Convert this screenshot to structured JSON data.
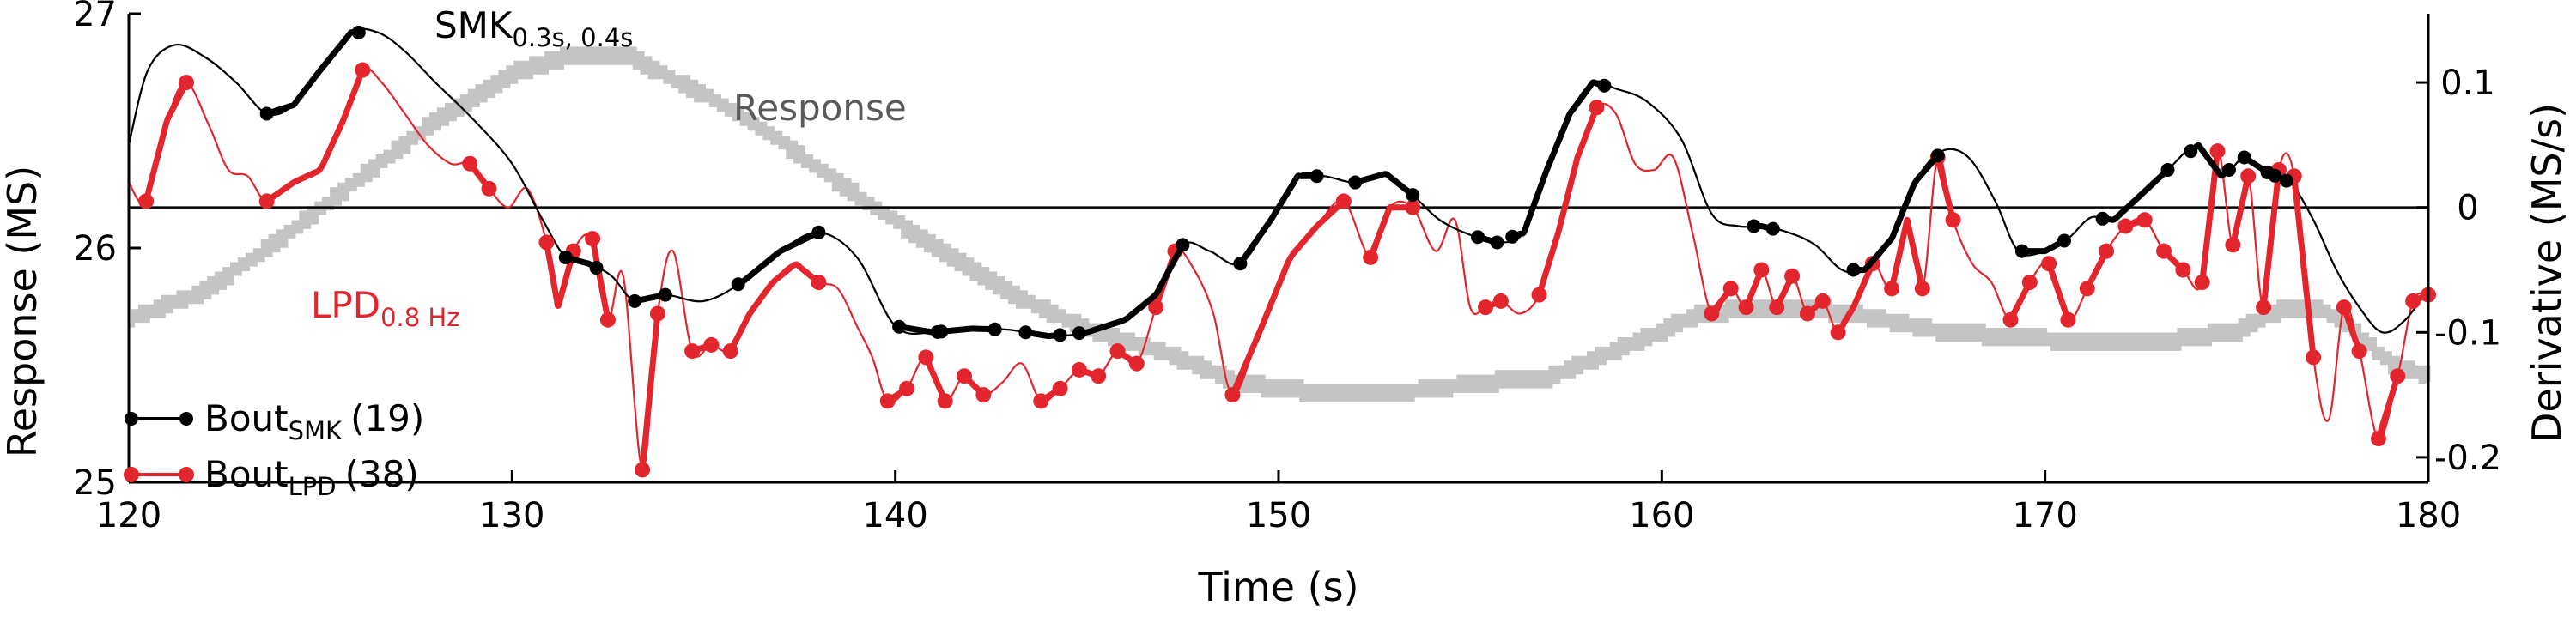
{
  "chart_data": {
    "type": "line",
    "xlabel": "Time (s)",
    "ylabel_left": "Response (MS)",
    "ylabel_right": "Derivative (MS/s)",
    "xlim": [
      120,
      180
    ],
    "ylim_left": [
      25,
      27
    ],
    "ylim_right": [
      -0.22,
      0.155
    ],
    "x_ticks": [
      120,
      130,
      140,
      150,
      160,
      170,
      180
    ],
    "y_ticks_left": [
      25,
      26,
      27
    ],
    "y_ticks_right": [
      -0.2,
      -0.1,
      0,
      0.1
    ],
    "y_tick_labels_right": [
      "-0.2",
      "-0.1",
      "0",
      "0.1"
    ],
    "zero_line": 0,
    "colors": {
      "response": "#c4c4c4",
      "smk": "#000000",
      "lpd": "#e3262d"
    },
    "annotations": {
      "smk": {
        "text": "SMK",
        "sub": "0.3s, 0.4s"
      },
      "response": {
        "text": "Response"
      },
      "lpd": {
        "text": "LPD",
        "sub": "0.8 Hz"
      }
    },
    "legend": [
      {
        "label": "Bout",
        "sub": "SMK",
        "count": "(19)",
        "color": "#000000"
      },
      {
        "label": "Bout",
        "sub": "LPD",
        "count": "(38)",
        "color": "#e3262d"
      }
    ],
    "series": [
      {
        "name": "Response",
        "axis": "left",
        "color": "#c4c4c4",
        "x": [
          120,
          122,
          124,
          126,
          128,
          130,
          131.5,
          133,
          135,
          137,
          139,
          141,
          143,
          145,
          147,
          149,
          151,
          153,
          155,
          157,
          159,
          161,
          163,
          165,
          167,
          169,
          171,
          173,
          175,
          176,
          177,
          178,
          179,
          180
        ],
        "y": [
          25.7,
          25.82,
          26.05,
          26.3,
          26.55,
          26.75,
          26.82,
          26.82,
          26.65,
          26.45,
          26.22,
          26.0,
          25.8,
          25.65,
          25.55,
          25.42,
          25.38,
          25.38,
          25.42,
          25.45,
          25.58,
          25.72,
          25.75,
          25.72,
          25.65,
          25.62,
          25.6,
          25.6,
          25.65,
          25.73,
          25.75,
          25.65,
          25.5,
          25.45
        ]
      },
      {
        "name": "SMK",
        "axis": "right",
        "color": "#000000",
        "x": [
          120,
          120.5,
          121.2,
          122,
          122.8,
          123.6,
          124.3,
          125,
          125.8,
          126.5,
          127.2,
          128,
          129,
          130,
          130.8,
          131.4,
          132,
          132.6,
          133.2,
          134,
          135,
          136,
          137,
          138,
          139,
          140,
          141,
          142,
          143,
          144,
          145,
          146,
          146.8,
          147.5,
          148.2,
          149,
          149.8,
          150.5,
          151.2,
          152,
          152.8,
          153.5,
          154.2,
          155,
          155.7,
          156.4,
          157,
          157.6,
          158.2,
          158.8,
          159.6,
          160.5,
          161.3,
          162,
          162.6,
          163.3,
          164,
          164.7,
          165.3,
          166,
          166.6,
          167.3,
          168,
          168.7,
          169.3,
          170,
          170.6,
          171.2,
          171.8,
          172.5,
          173.2,
          174,
          174.6,
          175.2,
          175.8,
          176.4,
          177,
          177.6,
          178.2,
          178.8,
          179.4,
          180
        ],
        "y": [
          0.05,
          0.11,
          0.13,
          0.12,
          0.1,
          0.075,
          0.082,
          0.11,
          0.14,
          0.14,
          0.125,
          0.1,
          0.07,
          0.035,
          -0.01,
          -0.04,
          -0.045,
          -0.055,
          -0.075,
          -0.07,
          -0.075,
          -0.06,
          -0.035,
          -0.02,
          -0.04,
          -0.095,
          -0.1,
          -0.097,
          -0.098,
          -0.103,
          -0.1,
          -0.09,
          -0.07,
          -0.03,
          -0.035,
          -0.045,
          -0.01,
          0.025,
          0.025,
          0.02,
          0.027,
          0.01,
          -0.01,
          -0.022,
          -0.028,
          -0.02,
          0.03,
          0.075,
          0.1,
          0.095,
          0.085,
          0.055,
          -0.005,
          -0.015,
          -0.015,
          -0.02,
          -0.03,
          -0.05,
          -0.05,
          -0.025,
          0.02,
          0.045,
          0.04,
          0.005,
          -0.035,
          -0.035,
          -0.025,
          -0.008,
          -0.01,
          0.01,
          0.03,
          0.05,
          0.025,
          0.04,
          0.028,
          0.02,
          -0.01,
          -0.05,
          -0.08,
          -0.1,
          -0.09,
          -0.065
        ]
      },
      {
        "name": "LPD",
        "axis": "right",
        "color": "#e3262d",
        "x": [
          120,
          120.45,
          121,
          121.5,
          122.1,
          122.6,
          123.1,
          123.6,
          124.3,
          125,
          125.6,
          126.1,
          126.6,
          127.2,
          127.8,
          128.4,
          128.9,
          129.4,
          129.9,
          130.4,
          130.9,
          131.2,
          131.6,
          132.1,
          132.5,
          132.9,
          133.4,
          133.8,
          134.2,
          134.7,
          135.2,
          135.7,
          136.2,
          136.8,
          137.4,
          138,
          138.5,
          139,
          139.4,
          139.8,
          140.3,
          140.8,
          141.3,
          141.8,
          142.3,
          142.8,
          143.3,
          143.8,
          144.3,
          144.8,
          145.3,
          145.8,
          146.3,
          146.8,
          147.3,
          147.8,
          148.3,
          148.8,
          149.5,
          150.3,
          151,
          151.7,
          152.4,
          152.9,
          153.5,
          154.1,
          154.6,
          155,
          155.4,
          155.8,
          156.3,
          156.8,
          157.3,
          157.8,
          158.3,
          158.8,
          159.3,
          159.8,
          160.3,
          160.8,
          161.3,
          161.8,
          162.2,
          162.6,
          163,
          163.4,
          163.8,
          164.2,
          164.6,
          165,
          165.5,
          166,
          166.4,
          166.8,
          167.2,
          167.6,
          168.1,
          168.6,
          169.1,
          169.6,
          170.1,
          170.6,
          171.1,
          171.6,
          172.1,
          172.6,
          173.1,
          173.6,
          174.1,
          174.5,
          174.9,
          175.3,
          175.7,
          176.1,
          176.5,
          177,
          177.4,
          177.8,
          178.2,
          178.7,
          179.2,
          179.6,
          180
        ],
        "y": [
          0.02,
          0.005,
          0.07,
          0.1,
          0.065,
          0.03,
          0.025,
          0.005,
          0.02,
          0.03,
          0.07,
          0.11,
          0.1,
          0.075,
          0.05,
          0.035,
          0.035,
          0.015,
          0.0,
          0.015,
          -0.028,
          -0.08,
          -0.035,
          -0.025,
          -0.09,
          -0.055,
          -0.21,
          -0.085,
          -0.035,
          -0.115,
          -0.11,
          -0.115,
          -0.085,
          -0.06,
          -0.045,
          -0.06,
          -0.065,
          -0.095,
          -0.12,
          -0.155,
          -0.145,
          -0.12,
          -0.155,
          -0.135,
          -0.15,
          -0.14,
          -0.125,
          -0.155,
          -0.145,
          -0.13,
          -0.135,
          -0.115,
          -0.125,
          -0.08,
          -0.035,
          -0.05,
          -0.085,
          -0.15,
          -0.1,
          -0.04,
          -0.015,
          0.005,
          -0.04,
          0.0,
          0.0,
          -0.035,
          -0.01,
          -0.08,
          -0.08,
          -0.075,
          -0.085,
          -0.07,
          -0.02,
          0.04,
          0.08,
          0.075,
          0.035,
          0.03,
          0.04,
          -0.02,
          -0.085,
          -0.065,
          -0.08,
          -0.05,
          -0.08,
          -0.055,
          -0.085,
          -0.075,
          -0.1,
          -0.08,
          -0.045,
          -0.065,
          -0.01,
          -0.065,
          0.04,
          -0.01,
          -0.045,
          -0.06,
          -0.09,
          -0.06,
          -0.045,
          -0.09,
          -0.065,
          -0.035,
          -0.015,
          -0.01,
          -0.035,
          -0.05,
          -0.06,
          0.045,
          -0.03,
          0.025,
          -0.08,
          0.03,
          0.025,
          -0.12,
          -0.17,
          -0.08,
          -0.115,
          -0.185,
          -0.135,
          -0.075,
          -0.07
        ]
      }
    ],
    "bouts_smk": [
      {
        "start": 123.6,
        "end": 126
      },
      {
        "start": 131.4,
        "end": 132.2
      },
      {
        "start": 133.2,
        "end": 134
      },
      {
        "start": 135.9,
        "end": 138
      },
      {
        "start": 140.1,
        "end": 141.1
      },
      {
        "start": 141.2,
        "end": 142.6
      },
      {
        "start": 143.4,
        "end": 144.3
      },
      {
        "start": 144.8,
        "end": 147.5
      },
      {
        "start": 149,
        "end": 151
      },
      {
        "start": 152,
        "end": 153.5
      },
      {
        "start": 155.2,
        "end": 155.7
      },
      {
        "start": 156.1,
        "end": 158.5
      },
      {
        "start": 162.4,
        "end": 162.9
      },
      {
        "start": 165,
        "end": 167.2
      },
      {
        "start": 169.4,
        "end": 170.5
      },
      {
        "start": 171.5,
        "end": 173.2
      },
      {
        "start": 173.8,
        "end": 174.8
      },
      {
        "start": 175.2,
        "end": 175.8
      },
      {
        "start": 176,
        "end": 176.3
      }
    ],
    "bouts_lpd": [
      {
        "start": 120.45,
        "end": 121.5
      },
      {
        "start": 123.6,
        "end": 126.1
      },
      {
        "start": 128.9,
        "end": 129.4
      },
      {
        "start": 130.9,
        "end": 131.6
      },
      {
        "start": 132.1,
        "end": 132.5
      },
      {
        "start": 133.4,
        "end": 133.8
      },
      {
        "start": 134.7,
        "end": 135.2
      },
      {
        "start": 135.7,
        "end": 138
      },
      {
        "start": 139.8,
        "end": 140.3
      },
      {
        "start": 140.8,
        "end": 141.3
      },
      {
        "start": 141.8,
        "end": 142.3
      },
      {
        "start": 143.8,
        "end": 144.3
      },
      {
        "start": 144.8,
        "end": 145.3
      },
      {
        "start": 145.8,
        "end": 146.3
      },
      {
        "start": 146.8,
        "end": 147.3
      },
      {
        "start": 148.8,
        "end": 151.7
      },
      {
        "start": 152.4,
        "end": 153.5
      },
      {
        "start": 155.4,
        "end": 155.8
      },
      {
        "start": 156.8,
        "end": 158.3
      },
      {
        "start": 161.3,
        "end": 161.8
      },
      {
        "start": 162.2,
        "end": 162.6
      },
      {
        "start": 163,
        "end": 163.4
      },
      {
        "start": 163.8,
        "end": 164.2
      },
      {
        "start": 164.6,
        "end": 165.5
      },
      {
        "start": 166,
        "end": 166.8
      },
      {
        "start": 167.2,
        "end": 167.6
      },
      {
        "start": 169.1,
        "end": 169.6
      },
      {
        "start": 170.1,
        "end": 170.6
      },
      {
        "start": 171.1,
        "end": 171.6
      },
      {
        "start": 172.1,
        "end": 172.6
      },
      {
        "start": 173.1,
        "end": 173.6
      },
      {
        "start": 174.1,
        "end": 174.5
      },
      {
        "start": 174.9,
        "end": 175.3
      },
      {
        "start": 175.7,
        "end": 176.1
      },
      {
        "start": 176.5,
        "end": 177
      },
      {
        "start": 177.8,
        "end": 178.2
      },
      {
        "start": 178.7,
        "end": 179.2
      },
      {
        "start": 179.6,
        "end": 180
      }
    ]
  }
}
